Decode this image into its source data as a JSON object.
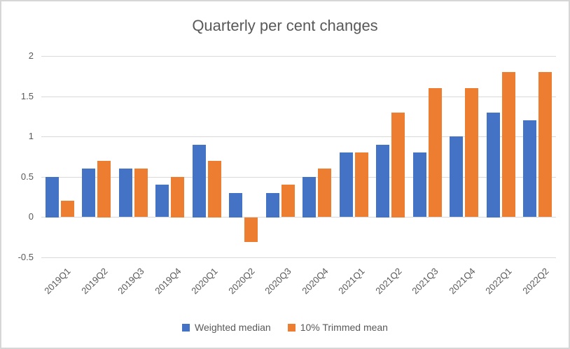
{
  "chart_data": {
    "type": "bar",
    "title": "Quarterly per cent changes",
    "categories": [
      "2019Q1",
      "2019Q2",
      "2019Q3",
      "2019Q4",
      "2020Q1",
      "2020Q2",
      "2020Q3",
      "2020Q4",
      "2021Q1",
      "2021Q2",
      "2021Q3",
      "2021Q4",
      "2022Q1",
      "2022Q2"
    ],
    "series": [
      {
        "name": "Weighted median",
        "color": "#4472C4",
        "values": [
          0.5,
          0.6,
          0.6,
          0.4,
          0.9,
          0.3,
          0.3,
          0.5,
          0.8,
          0.9,
          0.8,
          1.0,
          1.3,
          1.2
        ]
      },
      {
        "name": "10% Trimmed mean",
        "color": "#ED7D31",
        "values": [
          0.2,
          0.7,
          0.6,
          0.5,
          0.7,
          -0.3,
          0.4,
          0.6,
          0.8,
          1.3,
          1.6,
          1.6,
          1.8,
          1.8
        ]
      }
    ],
    "y_axis": {
      "ticks": [
        2,
        1.5,
        1,
        0.5,
        0,
        -0.5
      ],
      "tick_labels": [
        "2",
        "1.5",
        "1",
        "0.5",
        "0",
        "-0.5"
      ],
      "ylim": [
        -0.5,
        2
      ]
    },
    "xlabel": "",
    "ylabel": "",
    "grid": true,
    "legend_position": "bottom",
    "text_color": "#595959",
    "grid_color": "#d9d9d9"
  }
}
